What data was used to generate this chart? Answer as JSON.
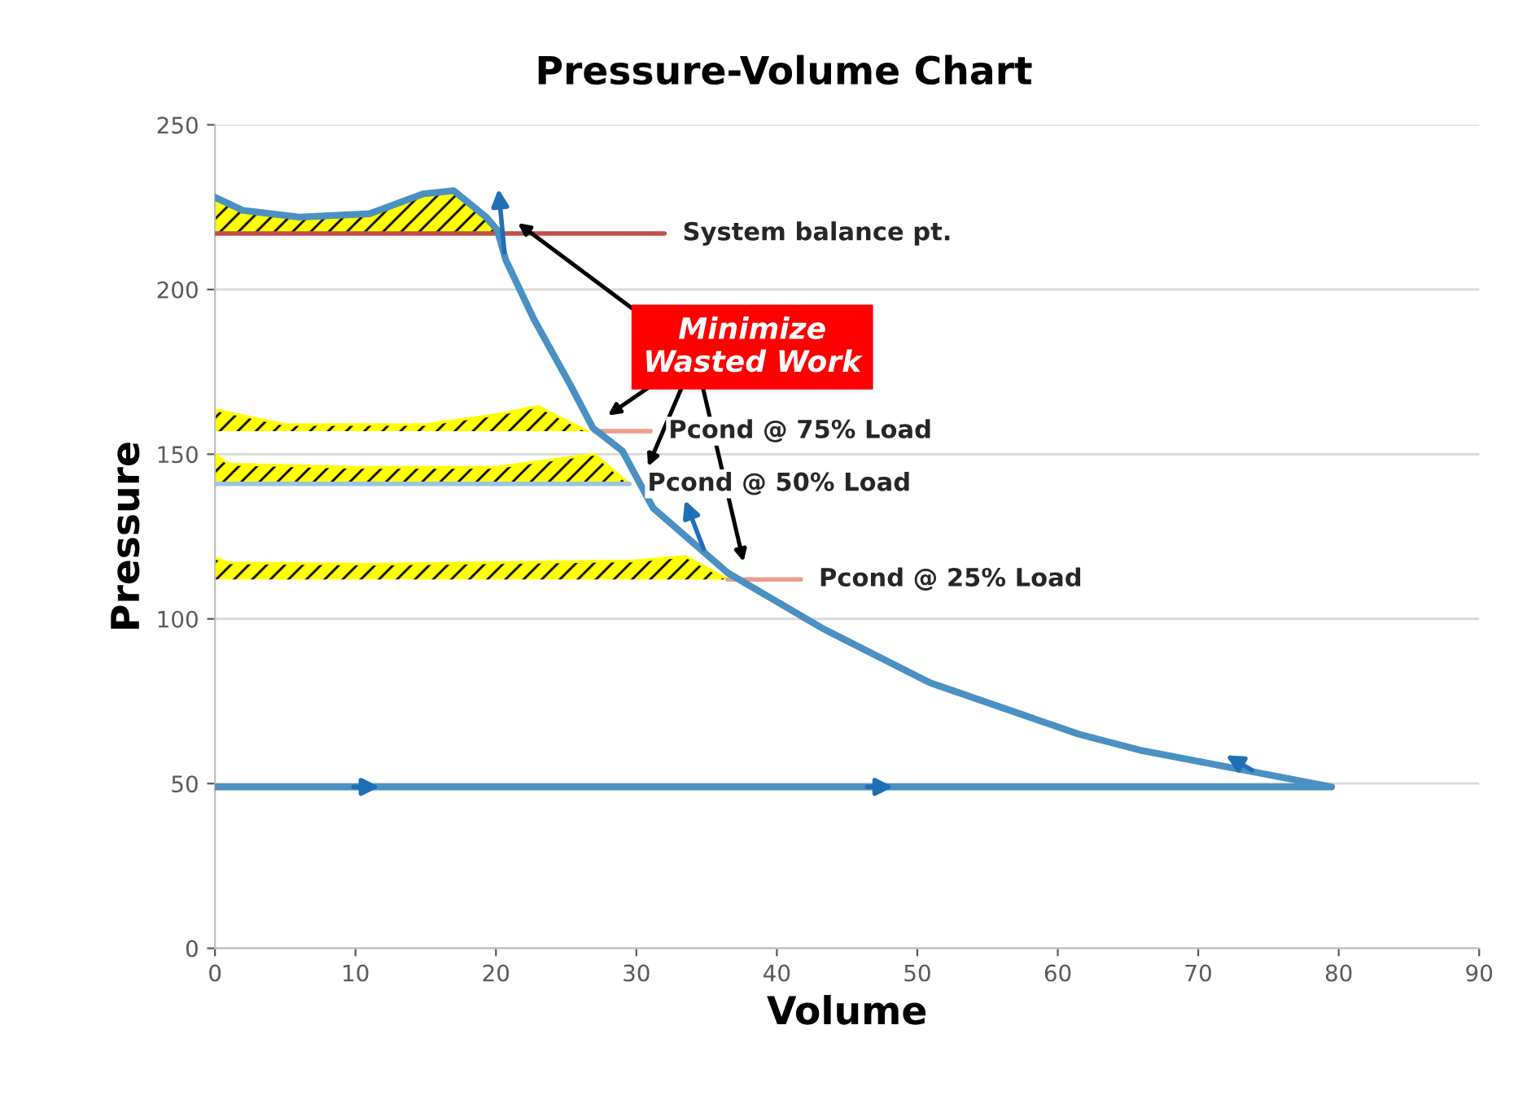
{
  "chart_data": {
    "type": "line",
    "title": "Pressure-Volume Chart",
    "xlabel": "Volume",
    "ylabel": "Pressure",
    "xlim": [
      0,
      90
    ],
    "xticks": [
      0,
      10,
      20,
      30,
      40,
      50,
      60,
      70,
      80,
      90
    ],
    "ylim": [
      0,
      250
    ],
    "yticks": [
      0,
      50,
      100,
      150,
      200,
      250
    ],
    "grid": "y",
    "legend": false,
    "series": [
      {
        "type": "area",
        "color": "#ffff00",
        "x": [
          0,
          2,
          6,
          11,
          14.8,
          17,
          19.3,
          20.1
        ],
        "values": [
          228,
          224,
          222,
          223,
          229,
          230,
          222,
          217
        ]
      },
      {
        "type": "area",
        "color": "#ffff00",
        "x": [
          0,
          5,
          15,
          20,
          23,
          26.5
        ],
        "values": [
          163.5,
          159,
          159,
          162,
          164.5,
          157
        ]
      },
      {
        "type": "area",
        "color": "#ffff00",
        "x": [
          0,
          1,
          10,
          20,
          27,
          29.5
        ],
        "values": [
          150,
          147,
          146,
          146,
          150,
          141
        ]
      },
      {
        "type": "area",
        "color": "#ffff00",
        "x": [
          0,
          1,
          11.5,
          29.8,
          33.5,
          36.5
        ],
        "values": [
          118.5,
          117,
          116.6,
          117.6,
          119,
          112
        ]
      },
      {
        "type": "line",
        "color": "#c0504d",
        "x": [
          0,
          32
        ],
        "values": [
          217,
          217
        ]
      },
      {
        "type": "line",
        "color": "#e8a08a",
        "x": [
          27,
          31
        ],
        "values": [
          157,
          157
        ]
      },
      {
        "type": "line",
        "color": "#9dc3e6",
        "x": [
          0,
          29.5
        ],
        "values": [
          141,
          141
        ]
      },
      {
        "type": "line",
        "color": "#e8a08a",
        "x": [
          36.5,
          41.7
        ],
        "values": [
          112,
          112
        ]
      },
      {
        "color": "#4a90c2",
        "x": [
          0,
          79.5,
          66,
          61.5,
          50.9,
          43.3,
          36.5,
          31.2,
          29,
          26.9,
          25.3,
          22.7,
          20.7,
          20.1,
          19.3,
          17,
          14.8,
          11,
          6,
          2,
          0
        ],
        "values": [
          49,
          49,
          60,
          65,
          80.6,
          97,
          114,
          133.6,
          151,
          158,
          171,
          191,
          209,
          218,
          222,
          230,
          229,
          223,
          222,
          224,
          228
        ]
      }
    ],
    "annotations": [
      {
        "text": "System balance pt.",
        "x": 32,
        "y": 217
      },
      "Minimize\nWasted Work",
      {
        "text": "Pcond @ 75% Load",
        "x": 31,
        "y": 157
      },
      {
        "text": "Pcond @ 50% Load",
        "x": 29.5,
        "y": 141
      },
      {
        "text": "Pcond @ 25% Load",
        "x": 41.7,
        "y": 112
      }
    ]
  }
}
